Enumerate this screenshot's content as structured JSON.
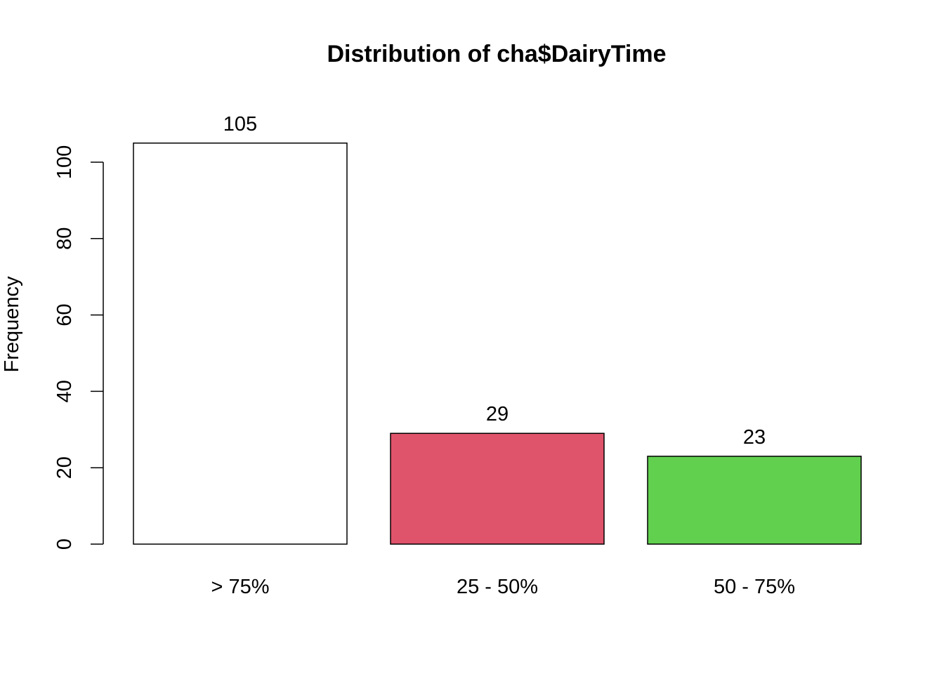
{
  "chart_data": {
    "type": "bar",
    "title": "Distribution of cha$DairyTime",
    "xlabel": "",
    "ylabel": "Frequency",
    "categories": [
      "> 75%",
      "25 - 50%",
      "50 - 75%"
    ],
    "values": [
      105,
      29,
      23
    ],
    "data_labels": [
      "105",
      "29",
      "23"
    ],
    "colors": [
      "#ffffff",
      "#df536b",
      "#61d04f"
    ],
    "ylim": [
      0,
      105
    ],
    "yticks": [
      0,
      20,
      40,
      60,
      80,
      100
    ],
    "grid": false,
    "legend": "none"
  }
}
